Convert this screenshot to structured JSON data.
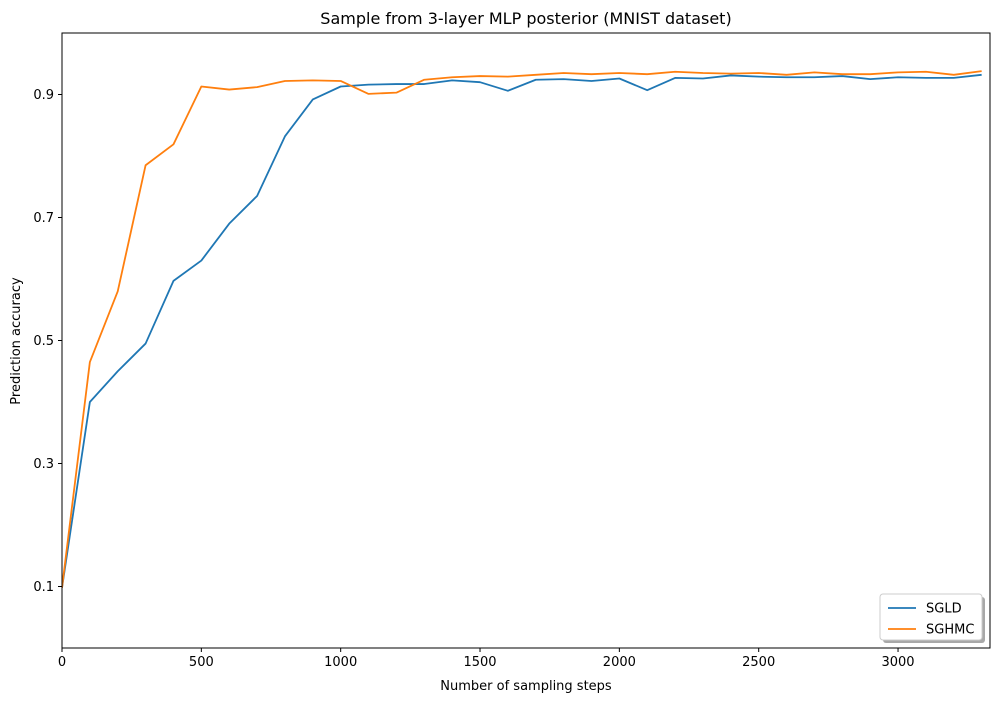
{
  "chart_data": {
    "type": "line",
    "title": "Sample from 3-layer MLP posterior (MNIST dataset)",
    "xlabel": "Number of sampling steps",
    "ylabel": "Prediction accuracy",
    "xlim": [
      0,
      3330
    ],
    "ylim": [
      0.0,
      0.2
    ],
    "xticks": [
      0,
      500,
      1000,
      1500,
      2000,
      2500,
      3000
    ],
    "xtick_labels": [
      "0",
      "500",
      "1000",
      "1500",
      "2000",
      "2500",
      "3000"
    ],
    "yticks": [
      0.1,
      0.3,
      0.5,
      0.7,
      0.9
    ],
    "ytick_labels": [
      "0.1",
      "0.3",
      "0.5",
      "0.7",
      "0.9"
    ],
    "grid": false,
    "legend_position": "lower-right",
    "x": [
      0,
      100,
      200,
      300,
      400,
      500,
      600,
      700,
      800,
      900,
      1000,
      1100,
      1200,
      1300,
      1400,
      1500,
      1600,
      1700,
      1800,
      1900,
      2000,
      2100,
      2200,
      2300,
      2400,
      2500,
      2600,
      2700,
      2800,
      2900,
      3000,
      3100,
      3200,
      3300
    ],
    "series": [
      {
        "name": "SGLD",
        "color": "#1f77b4",
        "values": [
          0.098,
          0.4,
          0.45,
          0.495,
          0.597,
          0.63,
          0.69,
          0.735,
          0.832,
          0.892,
          0.913,
          0.916,
          0.917,
          0.917,
          0.923,
          0.92,
          0.906,
          0.924,
          0.925,
          0.922,
          0.926,
          0.907,
          0.927,
          0.926,
          0.931,
          0.929,
          0.928,
          0.928,
          0.93,
          0.925,
          0.928,
          0.927,
          0.927,
          0.932
        ]
      },
      {
        "name": "SGHMC",
        "color": "#ff7f0e",
        "values": [
          0.098,
          0.465,
          0.58,
          0.785,
          0.819,
          0.913,
          0.908,
          0.912,
          0.922,
          0.923,
          0.922,
          0.901,
          0.903,
          0.924,
          0.928,
          0.93,
          0.929,
          0.932,
          0.935,
          0.933,
          0.935,
          0.933,
          0.937,
          0.935,
          0.934,
          0.935,
          0.932,
          0.936,
          0.933,
          0.933,
          0.936,
          0.937,
          0.932,
          0.938
        ]
      }
    ]
  }
}
